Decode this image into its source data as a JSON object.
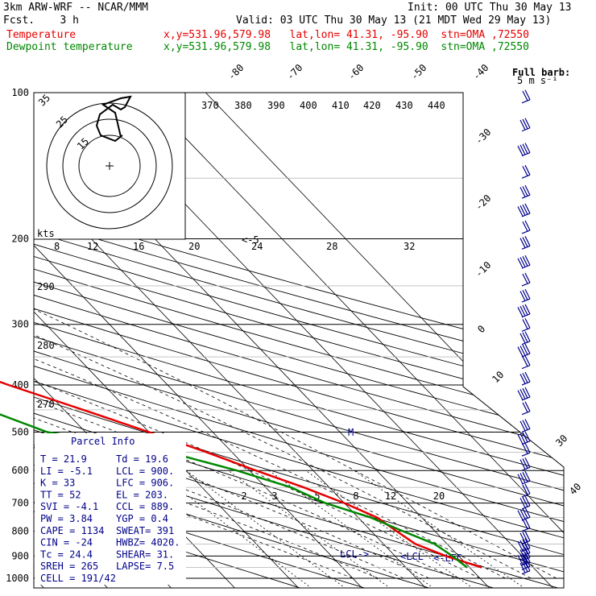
{
  "header": {
    "model": "3km ARW-WRF -- NCAR/MMM",
    "init": "Init: 00 UTC Thu 30 May 13",
    "fcst": "Fcst.    3 h",
    "valid": "Valid: 03 UTC Thu 30 May 13 (21 MDT Wed 29 May 13)",
    "temp_label": "Temperature",
    "temp_loc": "x,y=531.96,579.98   lat,lon= 41.31, -95.90  stn=OMA ,72550",
    "dew_label": "Dewpoint temperature",
    "dew_loc": "x,y=531.96,579.98   lat,lon= 41.31, -95.90  stn=OMA ,72550"
  },
  "colors": {
    "temperature": "#e60000",
    "dewpoint": "#008800",
    "text": "#00008b",
    "grid": "#000000"
  },
  "chart_data": {
    "type": "line",
    "title": "",
    "pressure_ticks": [
      "100",
      "200",
      "300",
      "400",
      "500",
      "600",
      "700",
      "800",
      "900",
      "1000"
    ],
    "isotherm_labels": [
      "-80",
      "-70",
      "-60",
      "-50",
      "-40",
      "-30",
      "-20",
      "-10",
      "0",
      "10",
      "20",
      "30",
      "40"
    ],
    "theta_labels": [
      "370",
      "380",
      "390",
      "400",
      "410",
      "420",
      "430",
      "440"
    ],
    "theta_left_labels": [
      "290",
      "280",
      "270"
    ],
    "mixing_ratio_labels": [
      "2",
      "3",
      "5",
      "8",
      "12",
      "20"
    ],
    "hodograph": {
      "unit": "kts",
      "speed_labels": [
        "8",
        "12",
        "16",
        "20",
        "24",
        "28",
        "32"
      ],
      "ring_labels": [
        "15",
        "25",
        "35"
      ],
      "marker": "<-5"
    },
    "wind_legend": {
      "title": "Full barb:",
      "value": "5 m s⁻¹"
    },
    "series": [
      {
        "name": "Temperature",
        "color": "#e60000",
        "points": [
          [
            100,
            -59
          ],
          [
            120,
            -60
          ],
          [
            150,
            -62
          ],
          [
            175,
            -62
          ],
          [
            200,
            -60
          ],
          [
            250,
            -51
          ],
          [
            300,
            -43
          ],
          [
            350,
            -33
          ],
          [
            400,
            -25
          ],
          [
            450,
            -17
          ],
          [
            500,
            -10
          ],
          [
            550,
            -4
          ],
          [
            600,
            1
          ],
          [
            650,
            6
          ],
          [
            700,
            10
          ],
          [
            750,
            13
          ],
          [
            800,
            14
          ],
          [
            850,
            15
          ],
          [
            900,
            18
          ],
          [
            950,
            21.9
          ]
        ]
      },
      {
        "name": "Dewpoint temperature",
        "color": "#008800",
        "points": [
          [
            100,
            -82
          ],
          [
            120,
            -82
          ],
          [
            150,
            -82
          ],
          [
            175,
            -81
          ],
          [
            200,
            -78
          ],
          [
            250,
            -72
          ],
          [
            300,
            -65
          ],
          [
            350,
            -46
          ],
          [
            380,
            -30
          ],
          [
            400,
            -31
          ],
          [
            450,
            -32
          ],
          [
            500,
            -26
          ],
          [
            550,
            -10
          ],
          [
            600,
            -2
          ],
          [
            650,
            4
          ],
          [
            700,
            7
          ],
          [
            750,
            12
          ],
          [
            800,
            15
          ],
          [
            850,
            18
          ],
          [
            900,
            19
          ],
          [
            950,
            19.6
          ]
        ]
      }
    ],
    "annotations": [
      "M",
      "LCL->",
      "<LCL",
      "<-LFC"
    ]
  },
  "parcel_info": {
    "title": "Parcel Info",
    "rows": [
      [
        "T  =    21.9",
        "Td =  19.6"
      ],
      [
        "LI =    -5.1",
        "LCL =  900."
      ],
      [
        "K  =      33",
        "LFC =  906."
      ],
      [
        "TT =      52",
        "EL  =  203."
      ],
      [
        "SVI =   -4.1",
        "CCL =  889."
      ],
      [
        "PW =    3.84",
        "YGP =   0.4"
      ],
      [
        "CAPE =  1134",
        "SWEAT=  391"
      ],
      [
        "CIN =    -24",
        "HWBZ= 4020."
      ],
      [
        "Tc =    24.4",
        "SHEAR=  31."
      ],
      [
        "SREH =   265",
        "LAPSE=  7.5"
      ],
      [
        "CELL = 191/42",
        ""
      ]
    ]
  }
}
